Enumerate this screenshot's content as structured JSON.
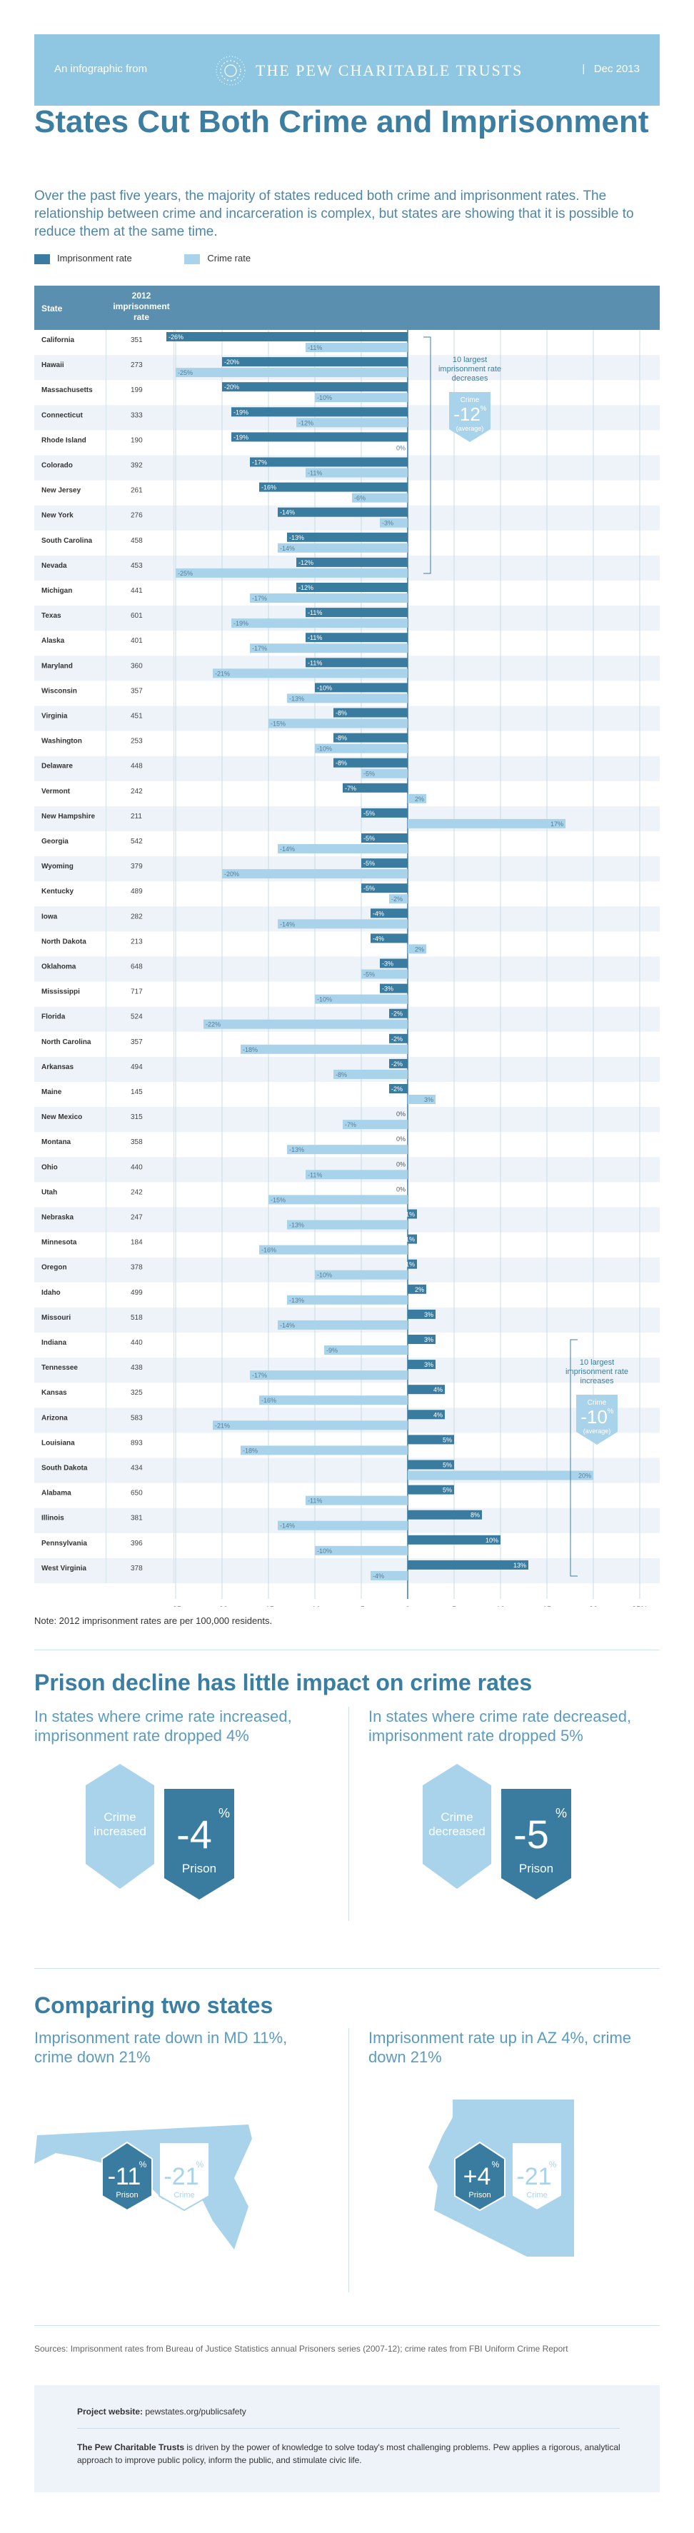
{
  "header": {
    "from": "An infographic from",
    "org": "THE PEW CHARITABLE TRUSTS",
    "date": "Dec 2013"
  },
  "title": "States Cut Both Crime and Imprisonment",
  "intro": "Over the past five years, the majority of states reduced both crime and imprisonment rates. The relationship between crime and incarceration is complex, but states are showing that it is possible to reduce them at the same time.",
  "colors": {
    "accent": "#3b7ea1",
    "prison": "#3a7ca0",
    "crime": "#a9d3ea",
    "header": "#5a8fb0",
    "light": "#8fc7e3"
  },
  "legend": {
    "prison": "Imprisonment rate",
    "crime": "Crime rate"
  },
  "chart_data": {
    "type": "bar",
    "orientation": "horizontal",
    "columns": {
      "state": "State",
      "rate": "2012 imprisonment rate"
    },
    "xlim": [
      -25,
      25
    ],
    "xticks": [
      "-25",
      "-20",
      "-15",
      "-10",
      "-5",
      "0",
      "5",
      "10",
      "15",
      "20",
      "25%"
    ],
    "rows": [
      {
        "state": "California",
        "rate": 351,
        "prison": -26,
        "crime": -11
      },
      {
        "state": "Hawaii",
        "rate": 273,
        "prison": -20,
        "crime": -25
      },
      {
        "state": "Massachusetts",
        "rate": 199,
        "prison": -20,
        "crime": -10
      },
      {
        "state": "Connecticut",
        "rate": 333,
        "prison": -19,
        "crime": -12
      },
      {
        "state": "Rhode Island",
        "rate": 190,
        "prison": -19,
        "crime": 0
      },
      {
        "state": "Colorado",
        "rate": 392,
        "prison": -17,
        "crime": -11
      },
      {
        "state": "New Jersey",
        "rate": 261,
        "prison": -16,
        "crime": -6
      },
      {
        "state": "New York",
        "rate": 276,
        "prison": -14,
        "crime": -3
      },
      {
        "state": "South Carolina",
        "rate": 458,
        "prison": -13,
        "crime": -14
      },
      {
        "state": "Nevada",
        "rate": 453,
        "prison": -12,
        "crime": -25
      },
      {
        "state": "Michigan",
        "rate": 441,
        "prison": -12,
        "crime": -17
      },
      {
        "state": "Texas",
        "rate": 601,
        "prison": -11,
        "crime": -19
      },
      {
        "state": "Alaska",
        "rate": 401,
        "prison": -11,
        "crime": -17
      },
      {
        "state": "Maryland",
        "rate": 360,
        "prison": -11,
        "crime": -21
      },
      {
        "state": "Wisconsin",
        "rate": 357,
        "prison": -10,
        "crime": -13
      },
      {
        "state": "Virginia",
        "rate": 451,
        "prison": -8,
        "crime": -15
      },
      {
        "state": "Washington",
        "rate": 253,
        "prison": -8,
        "crime": -10
      },
      {
        "state": "Delaware",
        "rate": 448,
        "prison": -8,
        "crime": -5
      },
      {
        "state": "Vermont",
        "rate": 242,
        "prison": -7,
        "crime": 2
      },
      {
        "state": "New Hampshire",
        "rate": 211,
        "prison": -5,
        "crime": 17
      },
      {
        "state": "Georgia",
        "rate": 542,
        "prison": -5,
        "crime": -14
      },
      {
        "state": "Wyoming",
        "rate": 379,
        "prison": -5,
        "crime": -20
      },
      {
        "state": "Kentucky",
        "rate": 489,
        "prison": -5,
        "crime": -2
      },
      {
        "state": "Iowa",
        "rate": 282,
        "prison": -4,
        "crime": -14
      },
      {
        "state": "North Dakota",
        "rate": 213,
        "prison": -4,
        "crime": 2
      },
      {
        "state": "Oklahoma",
        "rate": 648,
        "prison": -3,
        "crime": -5
      },
      {
        "state": "Mississippi",
        "rate": 717,
        "prison": -3,
        "crime": -10
      },
      {
        "state": "Florida",
        "rate": 524,
        "prison": -2,
        "crime": -22
      },
      {
        "state": "North Carolina",
        "rate": 357,
        "prison": -2,
        "crime": -18
      },
      {
        "state": "Arkansas",
        "rate": 494,
        "prison": -2,
        "crime": -8
      },
      {
        "state": "Maine",
        "rate": 145,
        "prison": -2,
        "crime": 3
      },
      {
        "state": "New Mexico",
        "rate": 315,
        "prison": 0,
        "crime": -7
      },
      {
        "state": "Montana",
        "rate": 358,
        "prison": 0,
        "crime": -13
      },
      {
        "state": "Ohio",
        "rate": 440,
        "prison": 0,
        "crime": -11
      },
      {
        "state": "Utah",
        "rate": 242,
        "prison": 0,
        "crime": -15
      },
      {
        "state": "Nebraska",
        "rate": 247,
        "prison": 1,
        "crime": -13
      },
      {
        "state": "Minnesota",
        "rate": 184,
        "prison": 1,
        "crime": -16
      },
      {
        "state": "Oregon",
        "rate": 378,
        "prison": 1,
        "crime": -10
      },
      {
        "state": "Idaho",
        "rate": 499,
        "prison": 2,
        "crime": -13
      },
      {
        "state": "Missouri",
        "rate": 518,
        "prison": 3,
        "crime": -14
      },
      {
        "state": "Indiana",
        "rate": 440,
        "prison": 3,
        "crime": -9
      },
      {
        "state": "Tennessee",
        "rate": 438,
        "prison": 3,
        "crime": -17
      },
      {
        "state": "Kansas",
        "rate": 325,
        "prison": 4,
        "crime": -16
      },
      {
        "state": "Arizona",
        "rate": 583,
        "prison": 4,
        "crime": -21
      },
      {
        "state": "Louisiana",
        "rate": 893,
        "prison": 5,
        "crime": -18
      },
      {
        "state": "South Dakota",
        "rate": 434,
        "prison": 5,
        "crime": 20
      },
      {
        "state": "Alabama",
        "rate": 650,
        "prison": 5,
        "crime": -11
      },
      {
        "state": "Illinois",
        "rate": 381,
        "prison": 8,
        "crime": -14
      },
      {
        "state": "Pennsylvania",
        "rate": 396,
        "prison": 10,
        "crime": -10
      },
      {
        "state": "West Virginia",
        "rate": 378,
        "prison": 13,
        "crime": -4
      }
    ],
    "callouts": [
      {
        "label": "10 largest imprisonment rate decreases",
        "badge_title": "Crime",
        "badge_value": "-12",
        "badge_avg": "(average)"
      },
      {
        "label": "10 largest imprisonment rate increases",
        "badge_title": "Crime",
        "badge_value": "-10",
        "badge_avg": "(average)"
      }
    ]
  },
  "note": "Note: 2012 imprisonment rates are per 100,000 residents.",
  "section2": {
    "heading": "Prison decline has little impact on crime rates",
    "left": {
      "sub": "In states where crime rate increased, imprisonment rate dropped 4%",
      "crime_label": "Crime increased",
      "prison_value": "-4",
      "prison_label": "Prison"
    },
    "right": {
      "sub": "In states where crime rate decreased, imprisonment rate dropped 5%",
      "crime_label": "Crime decreased",
      "prison_value": "-5",
      "prison_label": "Prison"
    }
  },
  "section3": {
    "heading": "Comparing two states",
    "md": {
      "sub": "Imprisonment rate down in MD 11%, crime down 21%",
      "prison_value": "-11",
      "prison_label": "Prison",
      "crime_value": "-21",
      "crime_label": "Crime"
    },
    "az": {
      "sub": "Imprisonment rate up in AZ 4%, crime down 21%",
      "prison_value": "+4",
      "prison_label": "Prison",
      "crime_value": "-21",
      "crime_label": "Crime"
    }
  },
  "sources": "Sources: Imprisonment rates from Bureau of Justice Statistics annual Prisoners series (2007-12); crime rates from FBI Uniform Crime Report",
  "footer": {
    "website_label": "Project website:",
    "website": "pewstates.org/publicsafety",
    "org_name": "The Pew Charitable Trusts",
    "desc": "is driven by the power of knowledge to solve today's most challenging problems. Pew applies a rigorous, analytical approach to improve public policy, inform the public, and stimulate civic life."
  }
}
